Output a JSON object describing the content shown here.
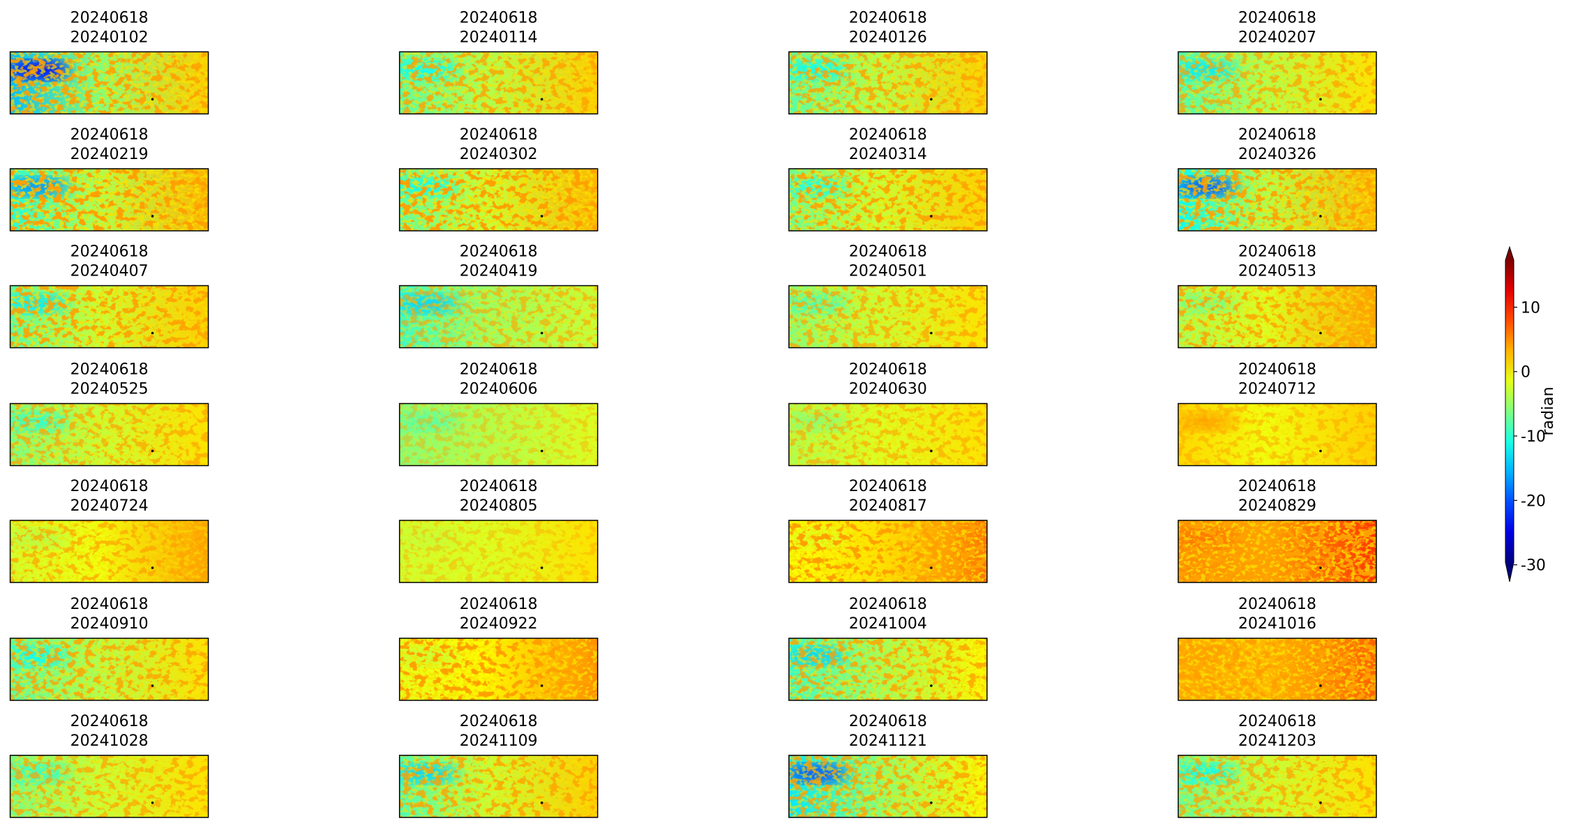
{
  "chart_data": {
    "type": "image_grid",
    "titles": [
      [
        "20240618",
        "20240102"
      ],
      [
        "20240618",
        "20240114"
      ],
      [
        "20240618",
        "20240126"
      ],
      [
        "20240618",
        "20240207"
      ],
      [
        "20240618",
        "20240219"
      ],
      [
        "20240618",
        "20240302"
      ],
      [
        "20240618",
        "20240314"
      ],
      [
        "20240618",
        "20240326"
      ],
      [
        "20240618",
        "20240407"
      ],
      [
        "20240618",
        "20240419"
      ],
      [
        "20240618",
        "20240501"
      ],
      [
        "20240618",
        "20240513"
      ],
      [
        "20240618",
        "20240525"
      ],
      [
        "20240618",
        "20240606"
      ],
      [
        "20240618",
        "20240630"
      ],
      [
        "20240618",
        "20240712"
      ],
      [
        "20240618",
        "20240724"
      ],
      [
        "20240618",
        "20240805"
      ],
      [
        "20240618",
        "20240817"
      ],
      [
        "20240618",
        "20240829"
      ],
      [
        "20240618",
        "20240910"
      ],
      [
        "20240618",
        "20240922"
      ],
      [
        "20240618",
        "20241004"
      ],
      [
        "20240618",
        "20241016"
      ],
      [
        "20240618",
        "20241028"
      ],
      [
        "20240618",
        "20241109"
      ],
      [
        "20240618",
        "20241121"
      ],
      [
        "20240618",
        "20241203"
      ]
    ],
    "colorbar": {
      "label": "radian",
      "lim": [
        -29.6,
        17.3
      ],
      "ticks": [
        10,
        0,
        -10,
        -20,
        -30
      ],
      "colormap": "jet",
      "extend": "both"
    }
  }
}
